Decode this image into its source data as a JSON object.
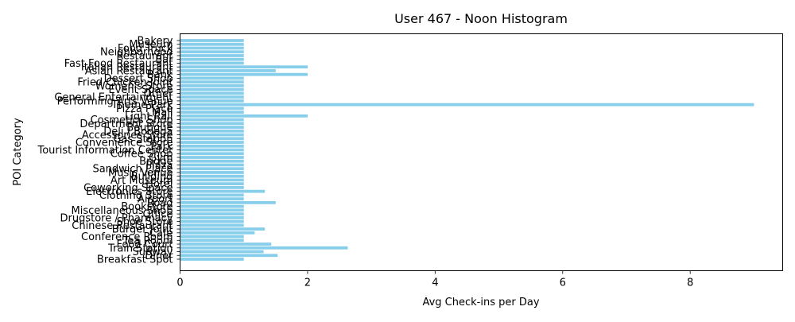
{
  "chart_data": {
    "type": "bar",
    "orientation": "horizontal",
    "title": "User 467 - Noon Histogram",
    "xlabel": "Avg Check-ins per Day",
    "ylabel": "POI Category",
    "xlim": [
      0,
      9.45
    ],
    "xticks": [
      0,
      2,
      4,
      6,
      8
    ],
    "bar_color": "#87ceeb",
    "grid": false,
    "categories": [
      "Bakery",
      "Museum",
      "Food Truck",
      "Neighborhood",
      "Restaurant",
      "Bar",
      "Fast Food Restaurant",
      "Italian Restaurant",
      "Asian Restaurant",
      "Bank",
      "Dessert Shop",
      "Fried Chicken Joint",
      "Women's Store",
      "Event Space",
      "Other",
      "General Entertainment",
      "Performing Arts Venue",
      "Theme Park",
      "Pizza Place",
      "Mall",
      "Light Rail",
      "Cosmetics Shop",
      "Department Store",
      "Boutique",
      "Deli / Bodega",
      "Accessories Store",
      "Gas Station",
      "Convenience Store",
      "Park",
      "Tourist Information Center",
      "Coffee Shop",
      "Gym",
      "Bridge",
      "Plaza",
      "Sandwich Place",
      "Music Venue",
      "Building",
      "Art Museum",
      "Hotel",
      "Coworking Space",
      "Electronics Store",
      "Clothing Store",
      "Airport",
      "Road",
      "Bookstore",
      "Miscellaneous Shop",
      "Office",
      "Drugstore / Pharmacy",
      "Shoe Store",
      "Chinese Restaurant",
      "Burger Joint",
      "Cafe",
      "Conference Room",
      "Tea Room",
      "Food Court",
      "Train Station",
      "Subway",
      "Diner",
      "Breakfast Spot"
    ],
    "values": [
      1,
      1,
      1,
      1,
      1,
      1,
      1,
      2,
      1.5,
      2,
      1,
      1,
      1,
      1,
      1,
      1,
      1,
      9,
      1,
      1,
      2,
      1,
      1,
      1,
      1,
      1,
      1,
      1,
      1,
      1,
      1,
      1,
      1,
      1,
      1,
      1,
      1,
      1,
      1,
      1,
      1.33,
      1,
      1,
      1.5,
      1,
      1,
      1,
      1,
      1,
      1,
      1.33,
      1.17,
      1,
      1,
      1.43,
      2.63,
      1.31,
      1.53,
      1
    ]
  }
}
